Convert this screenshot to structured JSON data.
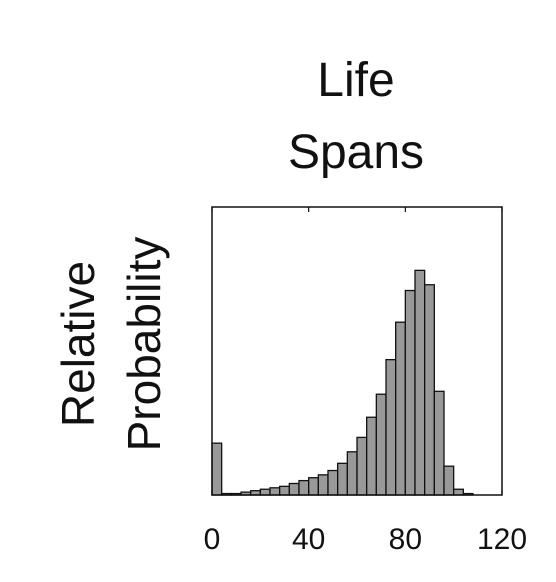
{
  "chart_data": {
    "type": "bar",
    "title_lines": [
      "Life",
      "Spans"
    ],
    "ylabel_lines": [
      "Relative",
      "Probability"
    ],
    "xlabel": "",
    "xlim": [
      0,
      120
    ],
    "ylim": [
      0,
      1
    ],
    "xticks": [
      0,
      40,
      80,
      120
    ],
    "xtick_labels": [
      "0",
      "40",
      "80",
      "120"
    ],
    "bin_width": 4,
    "bins_start": [
      0,
      4,
      8,
      12,
      16,
      20,
      24,
      28,
      32,
      36,
      40,
      44,
      48,
      52,
      56,
      60,
      64,
      68,
      72,
      76,
      80,
      84,
      88,
      92,
      96,
      100,
      104,
      108,
      112,
      116
    ],
    "values": [
      0.18,
      0.005,
      0.005,
      0.01,
      0.015,
      0.02,
      0.025,
      0.03,
      0.04,
      0.05,
      0.06,
      0.07,
      0.085,
      0.11,
      0.15,
      0.2,
      0.27,
      0.35,
      0.47,
      0.6,
      0.71,
      0.78,
      0.73,
      0.36,
      0.1,
      0.02,
      0.005,
      0,
      0,
      0
    ],
    "bar_color": "#999999",
    "bar_edge_color": "#111111",
    "grid": false,
    "legend": "none"
  }
}
